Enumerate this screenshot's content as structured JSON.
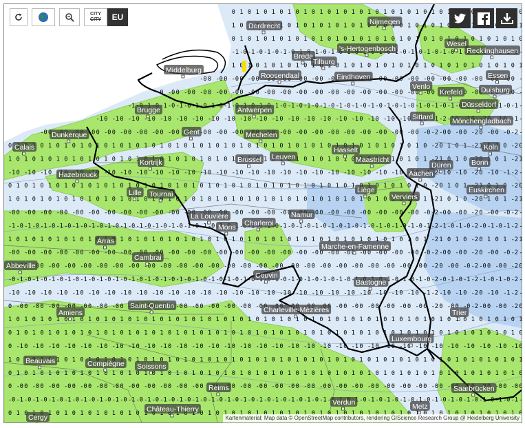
{
  "toolbar": {
    "refresh_icon": "refresh-icon",
    "globe_icon": "globe-icon",
    "zoom_out_icon": "zoom-out-icon",
    "city_label": "CITY",
    "eu_label": "EU"
  },
  "share": {
    "twitter_icon": "twitter-icon",
    "facebook_icon": "facebook-icon",
    "download_icon": "download-icon"
  },
  "attribution": "Kartenmaterial: Map data © OpenStreetMap contributors, rendering GIScience Research Group @ Heidelberg University",
  "colors": {
    "sea": "#ffffff",
    "light_blue": "#dce9f7",
    "mid_blue": "#b7d3f1",
    "green": "#a8e66e",
    "border": "#000000"
  },
  "cities": [
    {
      "name": "Middelburg"
    },
    {
      "name": "Dordrecht"
    },
    {
      "name": "Nijmegen"
    },
    {
      "name": "Breda"
    },
    {
      "name": "Tilburg"
    },
    {
      "name": "'s-Hertogenbosch"
    },
    {
      "name": "Wesel"
    },
    {
      "name": "Recklinghausen"
    },
    {
      "name": "Roosendaal"
    },
    {
      "name": "Eindhoven"
    },
    {
      "name": "Venlo"
    },
    {
      "name": "Essen"
    },
    {
      "name": "Brugge"
    },
    {
      "name": "Antwerpen"
    },
    {
      "name": "Krefeld"
    },
    {
      "name": "Duisburg"
    },
    {
      "name": "Düsseldorf"
    },
    {
      "name": "Mönchengladbach"
    },
    {
      "name": "Sittard"
    },
    {
      "name": "Dunkerque"
    },
    {
      "name": "Gent"
    },
    {
      "name": "Mechelen"
    },
    {
      "name": "Hasselt"
    },
    {
      "name": "Köln"
    },
    {
      "name": "Calais"
    },
    {
      "name": "Kortrijk"
    },
    {
      "name": "Brussel"
    },
    {
      "name": "Leuven"
    },
    {
      "name": "Maastricht"
    },
    {
      "name": "Aachen"
    },
    {
      "name": "Düren"
    },
    {
      "name": "Bonn"
    },
    {
      "name": "Hazebrouck"
    },
    {
      "name": "Lille"
    },
    {
      "name": "Tournai"
    },
    {
      "name": "Liège"
    },
    {
      "name": "Verviers"
    },
    {
      "name": "Euskirchen"
    },
    {
      "name": "La Louvière"
    },
    {
      "name": "Charleroi"
    },
    {
      "name": "Namur"
    },
    {
      "name": "Mons"
    },
    {
      "name": "Arras"
    },
    {
      "name": "Marche-en-Famenne"
    },
    {
      "name": "Cambrai"
    },
    {
      "name": "Abbeville"
    },
    {
      "name": "Couvin"
    },
    {
      "name": "Bastogne"
    },
    {
      "name": "Saint-Quentin"
    },
    {
      "name": "Amiens"
    },
    {
      "name": "Charleville-Mézières"
    },
    {
      "name": "Trier"
    },
    {
      "name": "Luxembourg"
    },
    {
      "name": "Beauvais"
    },
    {
      "name": "Compiègne"
    },
    {
      "name": "Soissons"
    },
    {
      "name": "Saarbrücken"
    },
    {
      "name": "Reims"
    },
    {
      "name": "Verdun"
    },
    {
      "name": "Metz"
    },
    {
      "name": "Château-Thierry"
    },
    {
      "name": "Cergy"
    }
  ]
}
